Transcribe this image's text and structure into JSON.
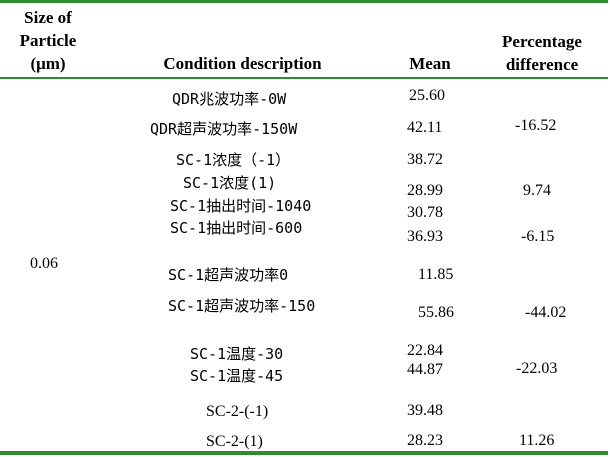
{
  "table": {
    "headers": {
      "size": [
        "Size of",
        "Particle",
        "(μm)"
      ],
      "condition": "Condition description",
      "mean": "Mean",
      "percentage": [
        "Percentage",
        "difference"
      ]
    },
    "size_value": "0.06",
    "conditions": [
      "QDR兆波功率-0W",
      "QDR超声波功率-150W",
      "SC-1浓度（-1）",
      "SC-1浓度(1)",
      "SC-1抽出时间-1040",
      "SC-1抽出时间-600",
      "SC-1超声波功率0",
      "SC-1超声波功率-150",
      "SC-1温度-30",
      "SC-1温度-45",
      "SC-2-(-1)",
      "SC-2-(1)"
    ],
    "means": [
      "25.60",
      "42.11",
      "38.72",
      "28.99",
      "30.78",
      "36.93",
      "11.85",
      "55.86",
      "22.84",
      "44.87",
      "39.48",
      "28.23"
    ],
    "differences": [
      "-16.52",
      "9.74",
      "-6.15",
      "-44.02",
      "-22.03",
      "11.26"
    ]
  }
}
